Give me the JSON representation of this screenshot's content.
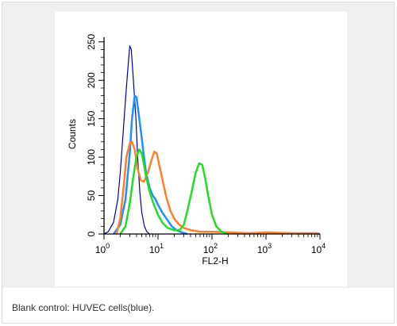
{
  "caption": "Blank control: HUVEC cells(blue).",
  "colors": {
    "figure_background": "#f0f0f0",
    "plot_background": "#ffffff",
    "axis": "#000000"
  },
  "chart_data": {
    "type": "line",
    "title": "",
    "xlabel": "FL2-H",
    "ylabel": "Counts",
    "x_scale": "log",
    "xlim": [
      1,
      10000
    ],
    "ylim": [
      0,
      256
    ],
    "x_ticks": [
      1,
      10,
      100,
      1000,
      10000
    ],
    "x_tick_labels": [
      {
        "base": "10",
        "exp": "0"
      },
      {
        "base": "10",
        "exp": "1"
      },
      {
        "base": "10",
        "exp": "2"
      },
      {
        "base": "10",
        "exp": "3"
      },
      {
        "base": "10",
        "exp": "4"
      }
    ],
    "y_ticks": [
      0,
      50,
      100,
      150,
      200,
      250
    ],
    "y_tick_labels": [
      "0",
      "50",
      "100",
      "150",
      "200",
      "250"
    ],
    "grid": false,
    "legend": "none",
    "series": [
      {
        "color": "#0000aa",
        "stroke_width": 1.2,
        "points": [
          [
            1.0,
            0
          ],
          [
            1.2,
            3
          ],
          [
            1.5,
            15
          ],
          [
            1.8,
            45
          ],
          [
            2.0,
            80
          ],
          [
            2.2,
            120
          ],
          [
            2.5,
            175
          ],
          [
            2.8,
            220
          ],
          [
            3.0,
            245
          ],
          [
            3.2,
            240
          ],
          [
            3.5,
            200
          ],
          [
            3.9,
            150
          ],
          [
            4.2,
            100
          ],
          [
            4.6,
            55
          ],
          [
            5.0,
            28
          ],
          [
            5.6,
            10
          ],
          [
            6.2,
            3
          ],
          [
            7.0,
            0
          ]
        ]
      },
      {
        "color": "#1e90ff",
        "stroke_width": 2.5,
        "points": [
          [
            1.5,
            0
          ],
          [
            2.0,
            12
          ],
          [
            2.5,
            45
          ],
          [
            3.0,
            105
          ],
          [
            3.3,
            150
          ],
          [
            3.7,
            180
          ],
          [
            4.0,
            178
          ],
          [
            4.5,
            150
          ],
          [
            5.0,
            125
          ],
          [
            5.5,
            100
          ],
          [
            6.0,
            80
          ],
          [
            7.0,
            60
          ],
          [
            8.0,
            50
          ],
          [
            9.0,
            45
          ],
          [
            10.0,
            38
          ],
          [
            12,
            28
          ],
          [
            15,
            18
          ],
          [
            18,
            10
          ],
          [
            22,
            5
          ],
          [
            28,
            2
          ],
          [
            35,
            0
          ]
        ]
      },
      {
        "color": "#ff7f27",
        "stroke_width": 2.5,
        "points": [
          [
            1.7,
            0
          ],
          [
            2.0,
            20
          ],
          [
            2.3,
            60
          ],
          [
            2.6,
            100
          ],
          [
            3.0,
            118
          ],
          [
            3.3,
            120
          ],
          [
            3.7,
            110
          ],
          [
            4.2,
            85
          ],
          [
            4.8,
            70
          ],
          [
            5.5,
            68
          ],
          [
            6.5,
            80
          ],
          [
            7.5,
            95
          ],
          [
            8.5,
            107
          ],
          [
            9.5,
            105
          ],
          [
            10.5,
            90
          ],
          [
            12,
            72
          ],
          [
            14,
            50
          ],
          [
            17,
            30
          ],
          [
            20,
            20
          ],
          [
            25,
            12
          ],
          [
            30,
            8
          ],
          [
            40,
            5
          ],
          [
            60,
            3
          ],
          [
            100,
            3
          ],
          [
            200,
            2
          ],
          [
            500,
            1
          ],
          [
            1000,
            2
          ],
          [
            3000,
            1
          ],
          [
            9000,
            1
          ],
          [
            10000,
            0
          ]
        ]
      },
      {
        "color": "#22dd22",
        "stroke_width": 2.5,
        "points": [
          [
            2.0,
            0
          ],
          [
            2.5,
            10
          ],
          [
            3.0,
            40
          ],
          [
            3.5,
            75
          ],
          [
            4.0,
            100
          ],
          [
            4.5,
            110
          ],
          [
            5.0,
            105
          ],
          [
            5.5,
            90
          ],
          [
            6.0,
            75
          ],
          [
            7.0,
            55
          ],
          [
            8.0,
            42
          ],
          [
            10,
            25
          ],
          [
            12,
            15
          ],
          [
            15,
            8
          ],
          [
            20,
            5
          ],
          [
            25,
            5
          ],
          [
            30,
            12
          ],
          [
            35,
            30
          ],
          [
            42,
            55
          ],
          [
            50,
            80
          ],
          [
            58,
            92
          ],
          [
            66,
            90
          ],
          [
            75,
            72
          ],
          [
            85,
            50
          ],
          [
            100,
            25
          ],
          [
            120,
            10
          ],
          [
            150,
            3
          ],
          [
            200,
            0
          ]
        ]
      }
    ]
  }
}
